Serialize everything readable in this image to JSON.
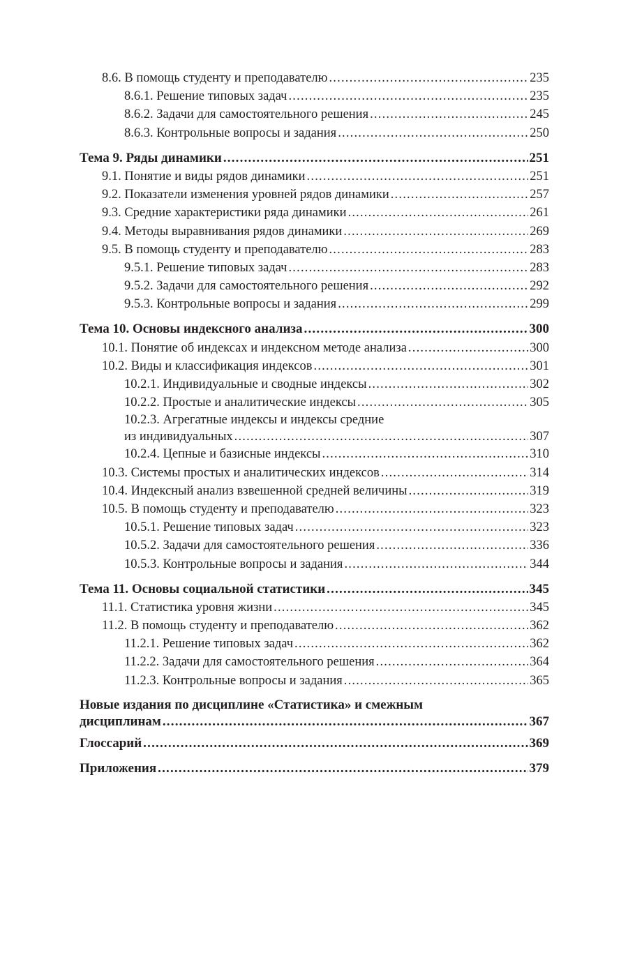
{
  "toc": [
    {
      "level": 2,
      "title": "8.6. В помощь студенту и преподавателю",
      "page": "235"
    },
    {
      "level": 3,
      "title": "8.6.1. Решение типовых задач",
      "page": "235"
    },
    {
      "level": 3,
      "title": "8.6.2. Задачи для самостоятельного решения",
      "page": "245"
    },
    {
      "level": 3,
      "title": "8.6.3. Контрольные вопросы и задания",
      "page": "250"
    },
    {
      "level": 1,
      "bold": true,
      "title": "Тема 9. Ряды динамики",
      "page": "251"
    },
    {
      "level": 2,
      "title": "9.1. Понятие и виды рядов динамики",
      "page": "251"
    },
    {
      "level": 2,
      "title": "9.2. Показатели изменения уровней рядов динамики",
      "page": "257"
    },
    {
      "level": 2,
      "title": "9.3. Средние характеристики ряда динамики",
      "page": "261"
    },
    {
      "level": 2,
      "title": "9.4. Методы выравнивания рядов динамики",
      "page": "269"
    },
    {
      "level": 2,
      "title": "9.5. В помощь студенту и преподавателю",
      "page": "283"
    },
    {
      "level": 3,
      "title": "9.5.1. Решение типовых задач",
      "page": "283"
    },
    {
      "level": 3,
      "title": "9.5.2. Задачи для самостоятельного решения",
      "page": "292"
    },
    {
      "level": 3,
      "title": "9.5.3. Контрольные вопросы и задания",
      "page": "299"
    },
    {
      "level": 1,
      "bold": true,
      "title": "Тема 10. Основы индексного анализа",
      "page": "300"
    },
    {
      "level": 2,
      "title": "10.1. Понятие об индексах и индексном методе анализа",
      "page": "300"
    },
    {
      "level": 2,
      "title": "10.2. Виды и классификация индексов",
      "page": "301"
    },
    {
      "level": 3,
      "title": "10.2.1. Индивидуальные и сводные индексы",
      "page": "302"
    },
    {
      "level": 3,
      "title": "10.2.2. Простые и аналитические индексы",
      "page": "305"
    },
    {
      "level": 3,
      "title_line1": "10.2.3. Агрегатные индексы и индексы средние",
      "title": "из индивидуальных",
      "page": "307"
    },
    {
      "level": 3,
      "title": "10.2.4. Цепные и базисные индексы",
      "page": "310"
    },
    {
      "level": 2,
      "title": "10.3. Системы простых и аналитических индексов",
      "page": "314"
    },
    {
      "level": 2,
      "title": "10.4. Индексный анализ взвешенной средней величины",
      "page": "319"
    },
    {
      "level": 2,
      "title": "10.5. В помощь студенту и преподавателю",
      "page": "323"
    },
    {
      "level": 3,
      "title": "10.5.1. Решение типовых задач",
      "page": "323"
    },
    {
      "level": 3,
      "title": "10.5.2. Задачи для самостоятельного решения",
      "page": "336"
    },
    {
      "level": 3,
      "title": "10.5.3. Контрольные вопросы и задания",
      "page": "344"
    },
    {
      "level": 1,
      "bold": true,
      "title": "Тема 11. Основы социальной статистики",
      "page": "345"
    },
    {
      "level": 2,
      "title": "11.1. Статистика уровня жизни",
      "page": "345"
    },
    {
      "level": 2,
      "title": "11.2. В помощь студенту и преподавателю",
      "page": "362"
    },
    {
      "level": 3,
      "title": "11.2.1. Решение типовых задач",
      "page": "362"
    },
    {
      "level": 3,
      "title": "11.2.2. Задачи для самостоятельного решения",
      "page": "364"
    },
    {
      "level": 3,
      "title": "11.2.3. Контрольные вопросы и задания",
      "page": "365"
    },
    {
      "level": 1,
      "bold": true,
      "title_line1": "Новые издания по дисциплине «Статистика» и смежным",
      "title": "дисциплинам",
      "page": "367"
    },
    {
      "level": 1,
      "bold": true,
      "title": "Глоссарий",
      "page": "369"
    },
    {
      "level": 1,
      "bold": true,
      "title": "Приложения",
      "page": "379"
    }
  ]
}
